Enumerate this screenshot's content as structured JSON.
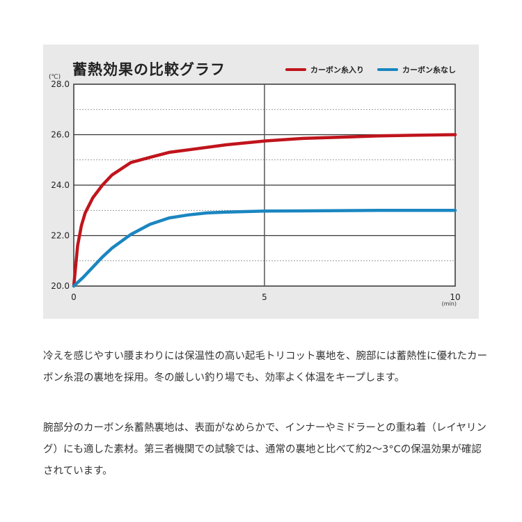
{
  "chart_data": {
    "type": "line",
    "title": "蓄熱効果の比較グラフ",
    "unit_label": "(℃)",
    "x_unit": "(min)",
    "xlim": [
      0,
      10
    ],
    "ylim": [
      20,
      28
    ],
    "x_ticks": [
      "0",
      "5",
      "10"
    ],
    "y_ticks": [
      "20.0",
      "22.0",
      "24.0",
      "26.0",
      "28.0"
    ],
    "legend_position": "top-right",
    "series": [
      {
        "name": "カーボン糸入り",
        "color": "#c0141c",
        "x": [
          0,
          0.1,
          0.2,
          0.3,
          0.5,
          0.75,
          1,
          1.5,
          2,
          2.5,
          3,
          4,
          5,
          6,
          7,
          8,
          9,
          10
        ],
        "y": [
          20,
          21.6,
          22.4,
          22.9,
          23.5,
          24.0,
          24.4,
          24.9,
          25.1,
          25.3,
          25.4,
          25.6,
          25.75,
          25.85,
          25.9,
          25.95,
          25.98,
          26.0
        ]
      },
      {
        "name": "カーボン糸なし",
        "color": "#1a86c0",
        "x": [
          0,
          0.25,
          0.5,
          0.75,
          1,
          1.5,
          2,
          2.5,
          3,
          3.5,
          4,
          5,
          6,
          7,
          8,
          9,
          10
        ],
        "y": [
          20,
          20.35,
          20.75,
          21.15,
          21.5,
          22.05,
          22.45,
          22.7,
          22.82,
          22.9,
          22.93,
          22.97,
          22.98,
          22.99,
          23.0,
          23.0,
          23.0
        ]
      }
    ]
  },
  "description": {
    "paragraph1": "冷えを感じやすい腰まわりには保温性の高い起毛トリコット裏地を、腕部には蓄熱性に優れたカーボン糸混の裏地を採用。冬の厳しい釣り場でも、効率よく体温をキープします。",
    "paragraph2": "腕部分のカーボン糸蓄熱裏地は、表面がなめらかで、インナーやミドラーとの重ね着（レイヤリング）にも適した素材。第三者機関での試験では、通常の裏地と比べて約2〜3°Cの保温効果が確認されています。"
  }
}
